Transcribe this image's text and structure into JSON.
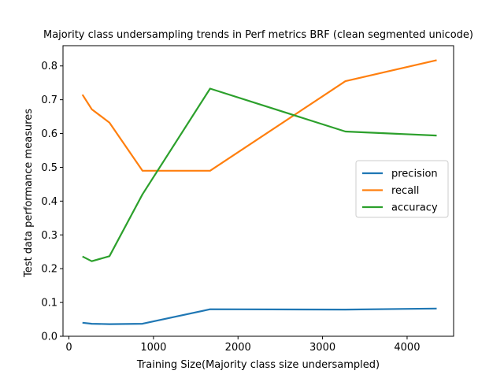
{
  "chart_data": {
    "type": "line",
    "title": "Majority class undersampling trends in Perf metrics BRF (clean segmented unicode)",
    "xlabel": "Training Size(Majority class size undersampled)",
    "ylabel": "Test data performance measures",
    "xlim": [
      -70,
      4550
    ],
    "ylim": [
      0,
      0.86
    ],
    "xticks": [
      0,
      1000,
      2000,
      3000,
      4000
    ],
    "yticks": [
      0.0,
      0.1,
      0.2,
      0.3,
      0.4,
      0.5,
      0.6,
      0.7,
      0.8
    ],
    "grid": false,
    "legend_position": "center-right",
    "series": [
      {
        "name": "precision",
        "color": "#1f77b4",
        "x": [
          160,
          270,
          480,
          870,
          1670,
          3270,
          4350
        ],
        "y": [
          0.04,
          0.037,
          0.036,
          0.037,
          0.08,
          0.079,
          0.082
        ]
      },
      {
        "name": "recall",
        "color": "#ff7f0e",
        "x": [
          160,
          270,
          480,
          870,
          1670,
          3270,
          4350
        ],
        "y": [
          0.715,
          0.672,
          0.632,
          0.49,
          0.49,
          0.755,
          0.817
        ]
      },
      {
        "name": "accuracy",
        "color": "#2ca02c",
        "x": [
          160,
          270,
          480,
          870,
          1670,
          3270,
          4350
        ],
        "y": [
          0.236,
          0.222,
          0.237,
          0.42,
          0.733,
          0.606,
          0.594
        ]
      }
    ]
  }
}
